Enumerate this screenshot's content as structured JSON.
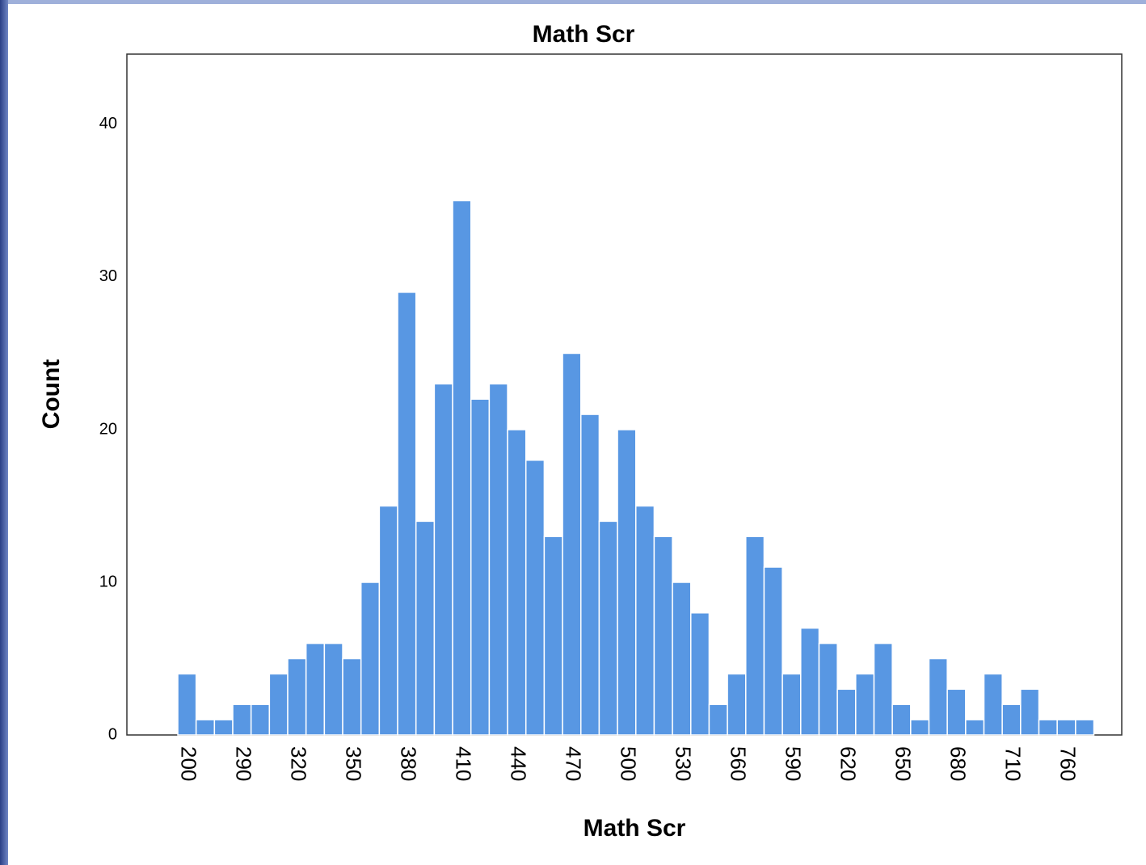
{
  "chart_data": {
    "type": "bar",
    "title": "Math Scr",
    "x_label": "Math Scr",
    "y_label": "Count",
    "categories": [
      "200",
      null,
      null,
      "290",
      null,
      null,
      "320",
      null,
      null,
      "350",
      null,
      null,
      "380",
      null,
      null,
      "410",
      null,
      null,
      "440",
      null,
      null,
      "470",
      null,
      null,
      "500",
      null,
      null,
      "530",
      null,
      null,
      "560",
      null,
      null,
      "590",
      null,
      null,
      "620",
      null,
      null,
      "650",
      null,
      null,
      "680",
      null,
      null,
      "710",
      null,
      null,
      "760",
      null
    ],
    "values": [
      4,
      1,
      1,
      2,
      2,
      4,
      5,
      6,
      6,
      5,
      10,
      15,
      29,
      14,
      23,
      35,
      22,
      23,
      20,
      18,
      13,
      25,
      21,
      14,
      20,
      15,
      13,
      10,
      8,
      2,
      4,
      13,
      11,
      4,
      7,
      6,
      3,
      4,
      6,
      2,
      1,
      5,
      3,
      1,
      4,
      2,
      3,
      1,
      1,
      1
    ],
    "color": "#5897e3",
    "ylim": [
      0,
      44.6
    ],
    "yticks": [
      0,
      10,
      20,
      30,
      40
    ],
    "grid": false
  }
}
